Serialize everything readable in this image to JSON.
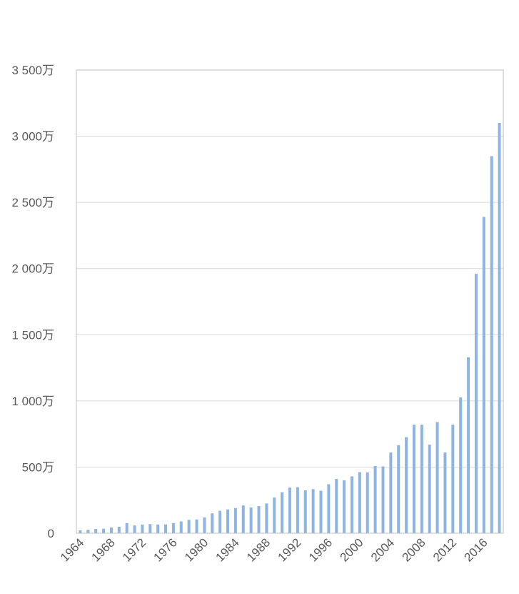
{
  "chart_data": {
    "type": "bar",
    "title": "",
    "xlabel": "",
    "ylabel": "",
    "ylim": [
      0,
      35000000
    ],
    "grid": true,
    "legend": "none",
    "bar_color": "#8db4e2",
    "yticks": [
      {
        "value": 0,
        "label": "0"
      },
      {
        "value": 5000000,
        "label": "500万"
      },
      {
        "value": 10000000,
        "label": "1 000万"
      },
      {
        "value": 15000000,
        "label": "1 500万"
      },
      {
        "value": 20000000,
        "label": "2 000万"
      },
      {
        "value": 25000000,
        "label": "2 500万"
      },
      {
        "value": 30000000,
        "label": "3 000万"
      },
      {
        "value": 35000000,
        "label": "3 500万"
      }
    ],
    "xtick_labels": [
      "1964",
      "1968",
      "1972",
      "1976",
      "1980",
      "1984",
      "1988",
      "1992",
      "1996",
      "2000",
      "2004",
      "2008",
      "2012",
      "2016"
    ],
    "categories": [
      "1964",
      "1965",
      "1966",
      "1967",
      "1968",
      "1969",
      "1970",
      "1971",
      "1972",
      "1973",
      "1974",
      "1975",
      "1976",
      "1977",
      "1978",
      "1979",
      "1980",
      "1981",
      "1982",
      "1983",
      "1984",
      "1985",
      "1986",
      "1987",
      "1988",
      "1989",
      "1990",
      "1991",
      "1992",
      "1993",
      "1994",
      "1995",
      "1996",
      "1997",
      "1998",
      "1999",
      "2000",
      "2001",
      "2002",
      "2003",
      "2004",
      "2005",
      "2006",
      "2007",
      "2008",
      "2009",
      "2010",
      "2011",
      "2012",
      "2013",
      "2014",
      "2015",
      "2016",
      "2017",
      "2018"
    ],
    "values": [
      220000,
      260000,
      320000,
      340000,
      440000,
      490000,
      760000,
      590000,
      660000,
      690000,
      660000,
      660000,
      770000,
      890000,
      1010000,
      1040000,
      1200000,
      1500000,
      1700000,
      1800000,
      1900000,
      2100000,
      1950000,
      2050000,
      2250000,
      2700000,
      3100000,
      3450000,
      3480000,
      3240000,
      3330000,
      3210000,
      3700000,
      4100000,
      4000000,
      4300000,
      4620000,
      4600000,
      5080000,
      5050000,
      6100000,
      6660000,
      7260000,
      8200000,
      8200000,
      6700000,
      8400000,
      6100000,
      8200000,
      10260000,
      13300000,
      19600000,
      23900000,
      28500000,
      31000000
    ]
  }
}
